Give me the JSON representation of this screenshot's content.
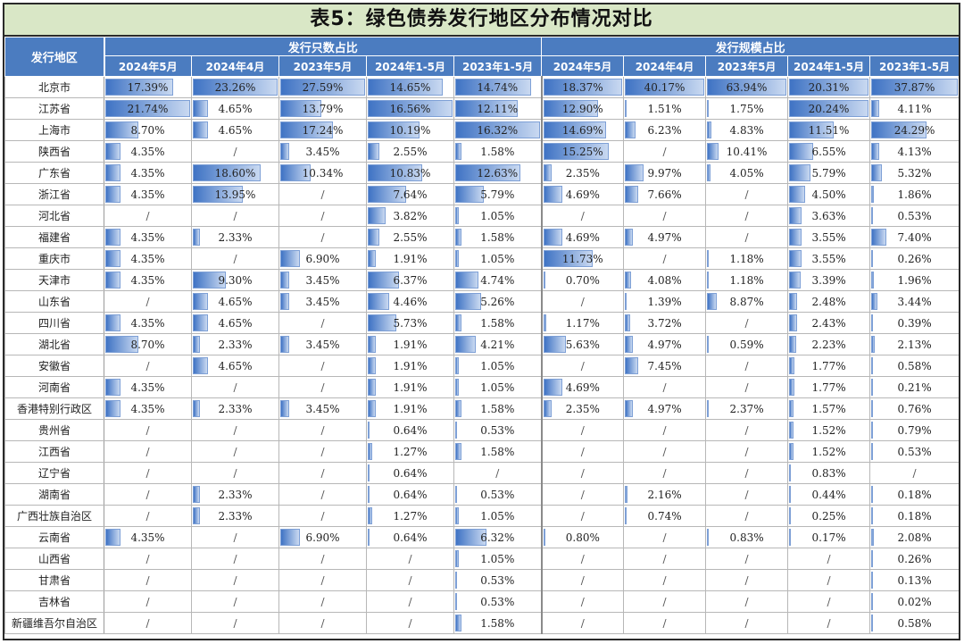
{
  "title": "表5：绿色债券发行地区分布情况对比",
  "header": {
    "region": "发行地区",
    "group_count": "发行只数占比",
    "group_scale": "发行规模占比",
    "periods": [
      "2024年5月",
      "2024年4月",
      "2023年5月",
      "2024年1-5月",
      "2023年1-5月"
    ]
  },
  "rows": [
    {
      "region": "北京市",
      "count": [
        "17.39%",
        "23.26%",
        "27.59%",
        "14.65%",
        "14.74%"
      ],
      "scale": [
        "18.37%",
        "40.17%",
        "63.94%",
        "20.31%",
        "37.87%"
      ]
    },
    {
      "region": "江苏省",
      "count": [
        "21.74%",
        "4.65%",
        "13.79%",
        "16.56%",
        "12.11%"
      ],
      "scale": [
        "12.90%",
        "1.51%",
        "1.75%",
        "20.24%",
        "4.11%"
      ]
    },
    {
      "region": "上海市",
      "count": [
        "8.70%",
        "4.65%",
        "17.24%",
        "10.19%",
        "16.32%"
      ],
      "scale": [
        "14.69%",
        "6.23%",
        "4.83%",
        "11.51%",
        "24.29%"
      ]
    },
    {
      "region": "陕西省",
      "count": [
        "4.35%",
        "/",
        "3.45%",
        "2.55%",
        "1.58%"
      ],
      "scale": [
        "15.25%",
        "/",
        "10.41%",
        "6.55%",
        "4.13%"
      ]
    },
    {
      "region": "广东省",
      "count": [
        "4.35%",
        "18.60%",
        "10.34%",
        "10.83%",
        "12.63%"
      ],
      "scale": [
        "2.35%",
        "9.97%",
        "4.05%",
        "5.79%",
        "5.32%"
      ]
    },
    {
      "region": "浙江省",
      "count": [
        "4.35%",
        "13.95%",
        "/",
        "7.64%",
        "5.79%"
      ],
      "scale": [
        "4.69%",
        "7.66%",
        "/",
        "4.50%",
        "1.86%"
      ]
    },
    {
      "region": "河北省",
      "count": [
        "/",
        "/",
        "/",
        "3.82%",
        "1.05%"
      ],
      "scale": [
        "/",
        "/",
        "/",
        "3.63%",
        "0.53%"
      ]
    },
    {
      "region": "福建省",
      "count": [
        "4.35%",
        "2.33%",
        "/",
        "2.55%",
        "1.58%"
      ],
      "scale": [
        "4.69%",
        "4.97%",
        "/",
        "3.55%",
        "7.40%"
      ]
    },
    {
      "region": "重庆市",
      "count": [
        "4.35%",
        "/",
        "6.90%",
        "1.91%",
        "1.05%"
      ],
      "scale": [
        "11.73%",
        "/",
        "1.18%",
        "3.55%",
        "0.26%"
      ]
    },
    {
      "region": "天津市",
      "count": [
        "4.35%",
        "9.30%",
        "3.45%",
        "6.37%",
        "4.74%"
      ],
      "scale": [
        "0.70%",
        "4.08%",
        "1.18%",
        "3.39%",
        "1.96%"
      ]
    },
    {
      "region": "山东省",
      "count": [
        "/",
        "4.65%",
        "3.45%",
        "4.46%",
        "5.26%"
      ],
      "scale": [
        "/",
        "1.39%",
        "8.87%",
        "2.48%",
        "3.44%"
      ]
    },
    {
      "region": "四川省",
      "count": [
        "4.35%",
        "4.65%",
        "/",
        "5.73%",
        "1.58%"
      ],
      "scale": [
        "1.17%",
        "3.72%",
        "/",
        "2.43%",
        "0.39%"
      ]
    },
    {
      "region": "湖北省",
      "count": [
        "8.70%",
        "2.33%",
        "3.45%",
        "1.91%",
        "4.21%"
      ],
      "scale": [
        "5.63%",
        "4.97%",
        "0.59%",
        "2.23%",
        "2.13%"
      ]
    },
    {
      "region": "安徽省",
      "count": [
        "/",
        "4.65%",
        "/",
        "1.91%",
        "1.05%"
      ],
      "scale": [
        "/",
        "7.45%",
        "/",
        "1.77%",
        "0.58%"
      ]
    },
    {
      "region": "河南省",
      "count": [
        "4.35%",
        "/",
        "/",
        "1.91%",
        "1.05%"
      ],
      "scale": [
        "4.69%",
        "/",
        "/",
        "1.77%",
        "0.21%"
      ]
    },
    {
      "region": "香港特别行政区",
      "count": [
        "4.35%",
        "2.33%",
        "3.45%",
        "1.91%",
        "1.58%"
      ],
      "scale": [
        "2.35%",
        "4.97%",
        "2.37%",
        "1.57%",
        "0.76%"
      ]
    },
    {
      "region": "贵州省",
      "count": [
        "/",
        "/",
        "/",
        "0.64%",
        "0.53%"
      ],
      "scale": [
        "/",
        "/",
        "/",
        "1.52%",
        "0.79%"
      ]
    },
    {
      "region": "江西省",
      "count": [
        "/",
        "/",
        "/",
        "1.27%",
        "1.58%"
      ],
      "scale": [
        "/",
        "/",
        "/",
        "1.52%",
        "0.53%"
      ]
    },
    {
      "region": "辽宁省",
      "count": [
        "/",
        "/",
        "/",
        "0.64%",
        "/"
      ],
      "scale": [
        "/",
        "/",
        "/",
        "0.83%",
        "/"
      ]
    },
    {
      "region": "湖南省",
      "count": [
        "/",
        "2.33%",
        "/",
        "0.64%",
        "0.53%"
      ],
      "scale": [
        "/",
        "2.16%",
        "/",
        "0.44%",
        "0.18%"
      ]
    },
    {
      "region": "广西壮族自治区",
      "count": [
        "/",
        "2.33%",
        "/",
        "1.27%",
        "1.05%"
      ],
      "scale": [
        "/",
        "0.74%",
        "/",
        "0.25%",
        "0.18%"
      ]
    },
    {
      "region": "云南省",
      "count": [
        "4.35%",
        "/",
        "6.90%",
        "0.64%",
        "6.32%"
      ],
      "scale": [
        "0.80%",
        "/",
        "0.83%",
        "0.17%",
        "2.08%"
      ]
    },
    {
      "region": "山西省",
      "count": [
        "/",
        "/",
        "/",
        "/",
        "1.05%"
      ],
      "scale": [
        "/",
        "/",
        "/",
        "/",
        "0.26%"
      ]
    },
    {
      "region": "甘肃省",
      "count": [
        "/",
        "/",
        "/",
        "/",
        "0.53%"
      ],
      "scale": [
        "/",
        "/",
        "/",
        "/",
        "0.13%"
      ]
    },
    {
      "region": "吉林省",
      "count": [
        "/",
        "/",
        "/",
        "/",
        "0.53%"
      ],
      "scale": [
        "/",
        "/",
        "/",
        "/",
        "0.02%"
      ]
    },
    {
      "region": "新疆维吾尔自治区",
      "count": [
        "/",
        "/",
        "/",
        "/",
        "1.58%"
      ],
      "scale": [
        "/",
        "/",
        "/",
        "/",
        "0.58%"
      ]
    }
  ],
  "colors": {
    "header_bg": "#4b7cc0",
    "title_bg": "#d9e7c6",
    "bar": "#3f73c4"
  }
}
